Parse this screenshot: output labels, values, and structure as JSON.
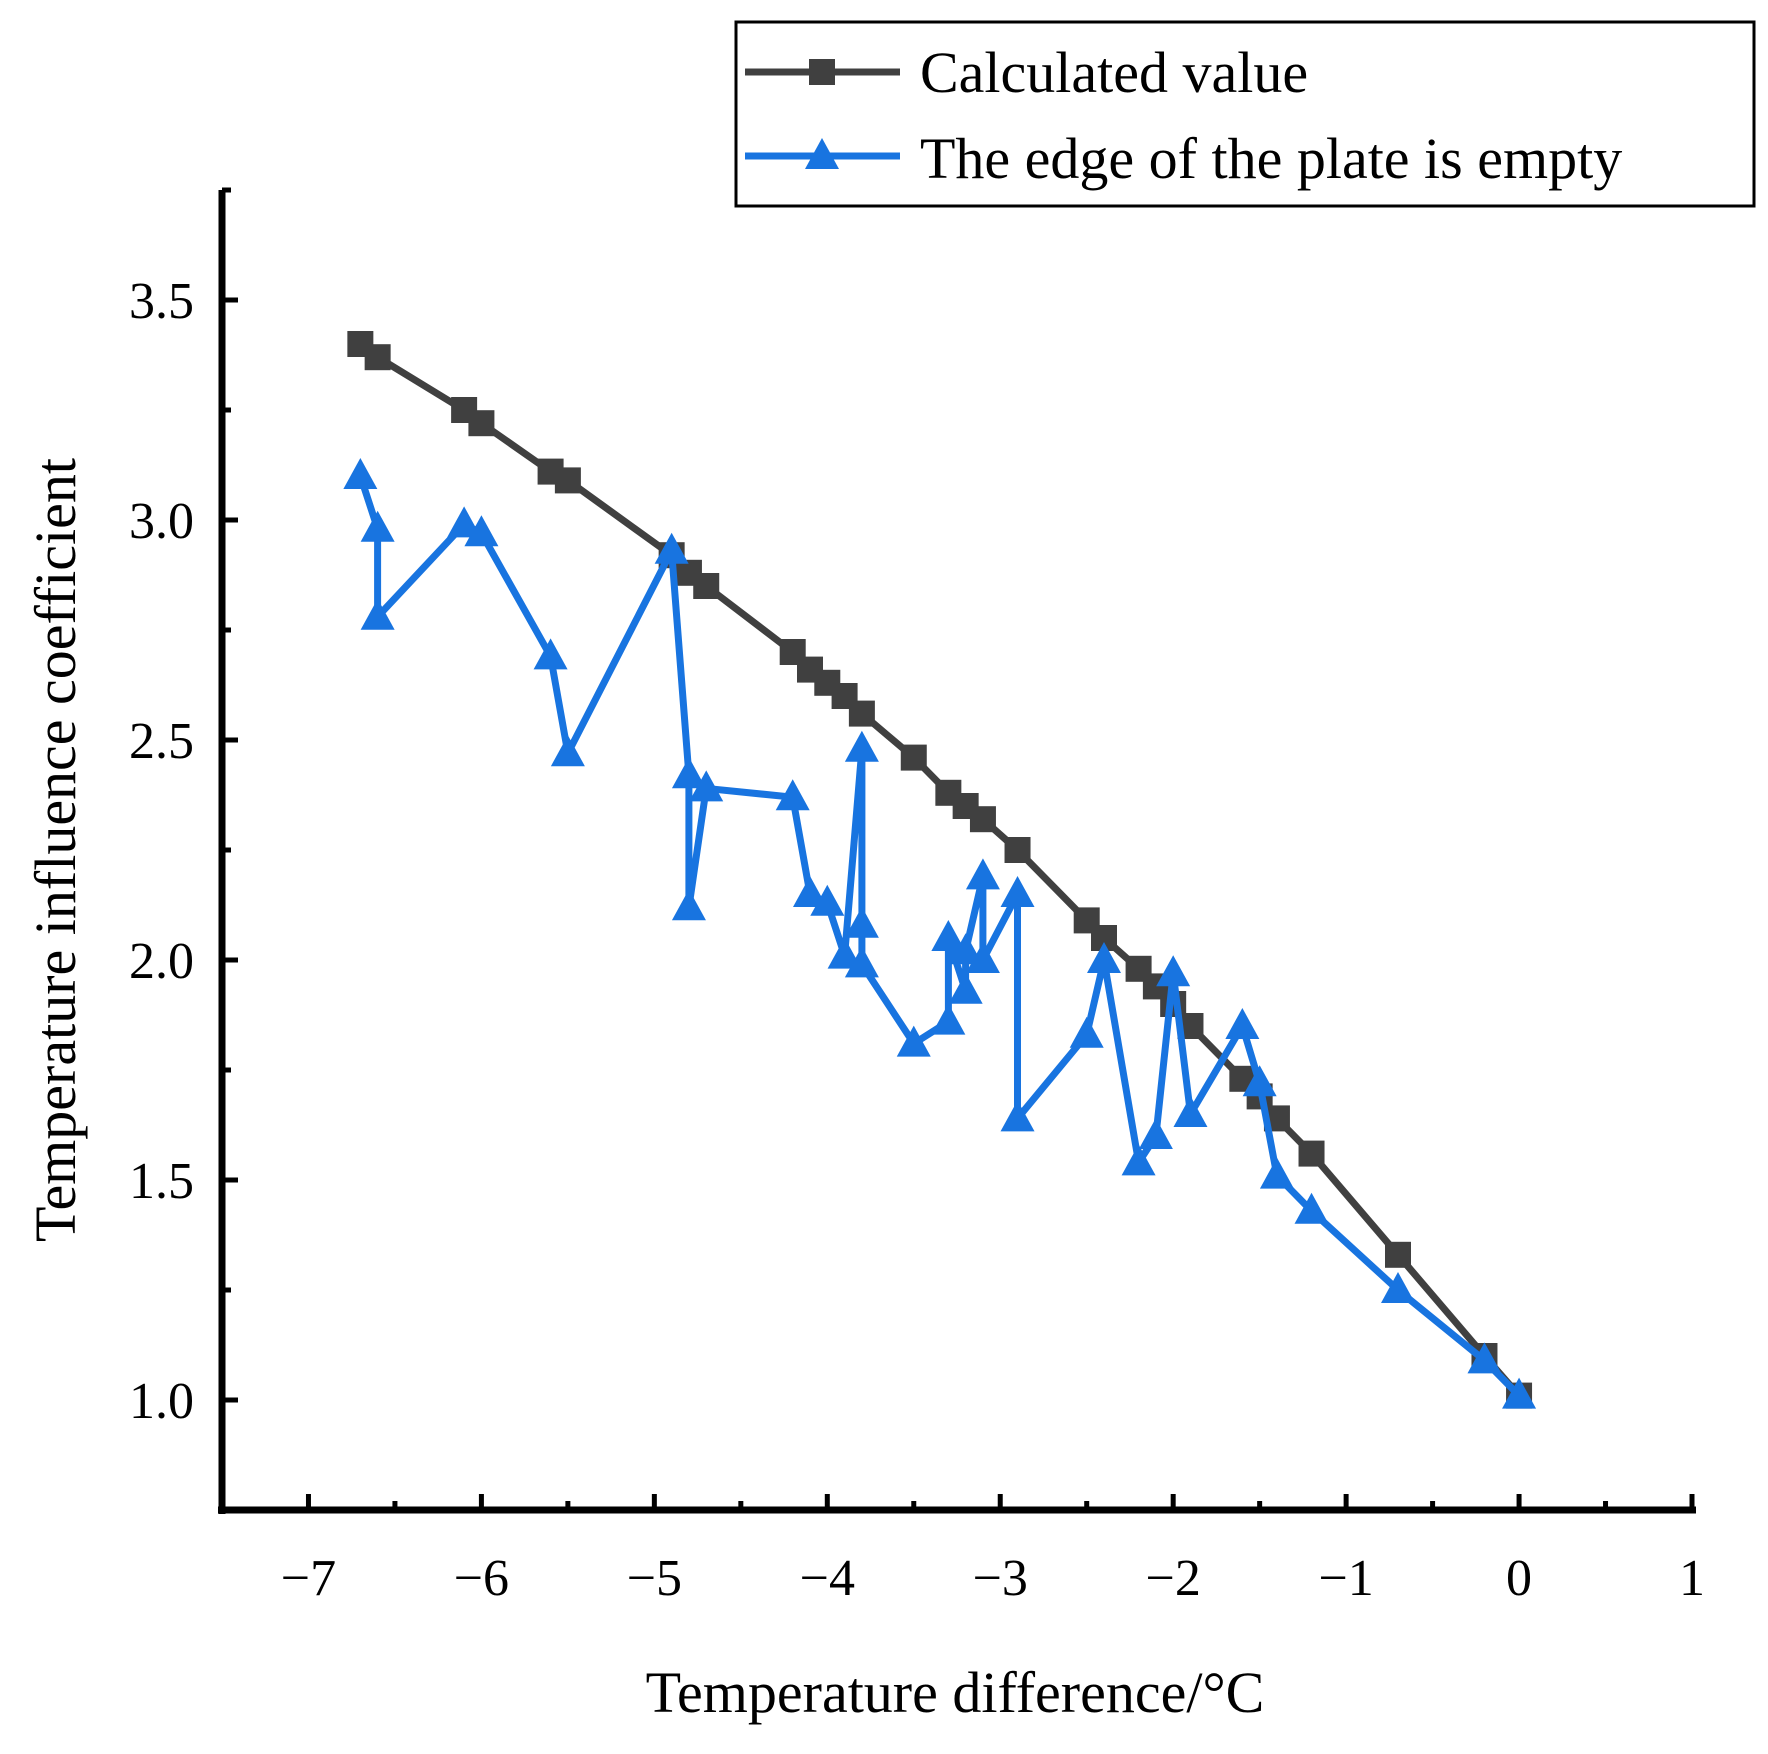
{
  "chart_data": {
    "type": "line",
    "title": "",
    "xlabel": "Temperature difference/°C",
    "ylabel": "Temperature influence coefficient",
    "xlim": [
      -7.5,
      1.0
    ],
    "ylim": [
      0.75,
      3.75
    ],
    "xticks": [
      -7,
      -6,
      -5,
      -4,
      -3,
      -2,
      -1,
      0,
      1
    ],
    "xtick_labels": [
      "−7",
      "−6",
      "−5",
      "−4",
      "−3",
      "−2",
      "−1",
      "0",
      "1"
    ],
    "yticks": [
      1.0,
      1.5,
      2.0,
      2.5,
      3.0,
      3.5
    ],
    "ytick_labels": [
      "1.0",
      "1.5",
      "2.0",
      "2.5",
      "3.0",
      "3.5"
    ],
    "grid": false,
    "legend_position": "top-right",
    "series": [
      {
        "name": "Calculated value",
        "color": "#404040",
        "marker": "square",
        "x": [
          -6.7,
          -6.6,
          -6.1,
          -6.0,
          -5.6,
          -5.5,
          -4.9,
          -4.8,
          -4.7,
          -4.2,
          -4.1,
          -4.0,
          -3.9,
          -3.8,
          -3.5,
          -3.3,
          -3.2,
          -3.1,
          -2.9,
          -2.5,
          -2.4,
          -2.2,
          -2.1,
          -2.0,
          -1.9,
          -1.6,
          -1.5,
          -1.4,
          -1.2,
          -0.7,
          -0.2,
          0.0
        ],
        "y": [
          3.4,
          3.37,
          3.25,
          3.22,
          3.11,
          3.09,
          2.92,
          2.88,
          2.85,
          2.7,
          2.66,
          2.63,
          2.6,
          2.56,
          2.46,
          2.38,
          2.35,
          2.32,
          2.25,
          2.09,
          2.05,
          1.98,
          1.94,
          1.9,
          1.85,
          1.73,
          1.69,
          1.64,
          1.56,
          1.33,
          1.1,
          1.01
        ]
      },
      {
        "name": "The edge of the plate is empty",
        "color": "#1874E0",
        "marker": "triangle",
        "x": [
          -6.7,
          -6.6,
          -6.6,
          -6.1,
          -6.0,
          -5.6,
          -5.5,
          -4.9,
          -4.8,
          -4.8,
          -4.7,
          -4.2,
          -4.1,
          -4.0,
          -3.9,
          -3.8,
          -3.8,
          -3.8,
          -3.5,
          -3.3,
          -3.3,
          -3.2,
          -3.2,
          -3.1,
          -3.1,
          -2.9,
          -2.9,
          -2.5,
          -2.4,
          -2.2,
          -2.1,
          -2.0,
          -1.9,
          -1.6,
          -1.5,
          -1.4,
          -1.2,
          -0.7,
          -0.2,
          0.0
        ],
        "y": [
          3.1,
          2.98,
          2.78,
          2.99,
          2.97,
          2.69,
          2.47,
          2.93,
          2.42,
          2.12,
          2.39,
          2.37,
          2.15,
          2.13,
          2.01,
          2.48,
          2.08,
          1.99,
          1.81,
          1.86,
          2.05,
          1.93,
          2.02,
          2.19,
          2.0,
          2.15,
          1.64,
          1.83,
          2.0,
          1.54,
          1.6,
          1.97,
          1.65,
          1.85,
          1.72,
          1.51,
          1.43,
          1.25,
          1.09,
          1.01
        ]
      }
    ]
  }
}
